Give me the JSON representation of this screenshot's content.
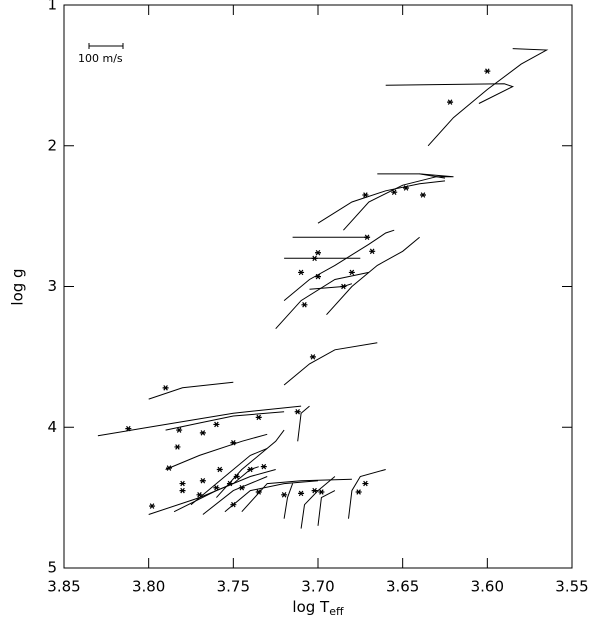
{
  "chart_data": {
    "type": "line",
    "xlabel": "log T",
    "xlabel_sub": "eff",
    "ylabel": "log g",
    "annotation": "100 m/s",
    "color": "#000000",
    "xlim": [
      3.85,
      3.55
    ],
    "xticks": [
      3.85,
      {
        "value": 3.8,
        "label": "3.80"
      },
      3.75,
      {
        "value": 3.7,
        "label": "3.70"
      },
      3.65,
      {
        "value": 3.6,
        "label": "3.60"
      },
      3.55
    ],
    "ylim": [
      1,
      5
    ],
    "yticks": [
      1,
      2,
      3,
      4,
      5
    ],
    "series": [
      {
        "x": [
          3.635,
          3.62,
          3.6,
          3.58,
          3.565,
          3.585
        ],
        "values": [
          2.0,
          1.8,
          1.6,
          1.42,
          1.32,
          1.31
        ]
      },
      {
        "x": [
          3.66,
          3.59,
          3.585,
          3.605
        ],
        "values": [
          1.57,
          1.56,
          1.58,
          1.7
        ]
      },
      {
        "x": [
          3.685,
          3.67,
          3.65,
          3.63,
          3.62,
          3.64
        ],
        "values": [
          2.6,
          2.4,
          2.28,
          2.22,
          2.22,
          2.2
        ]
      },
      {
        "x": [
          3.665,
          3.64,
          3.625
        ],
        "values": [
          2.2,
          2.2,
          2.23
        ]
      },
      {
        "x": [
          3.7,
          3.68,
          3.66,
          3.64,
          3.625
        ],
        "values": [
          2.55,
          2.4,
          2.32,
          2.27,
          2.25
        ]
      },
      {
        "x": [
          3.72,
          3.705,
          3.69,
          3.67,
          3.66,
          3.655
        ],
        "values": [
          3.1,
          2.95,
          2.85,
          2.7,
          2.62,
          2.6
        ]
      },
      {
        "x": [
          3.695,
          3.68,
          3.665,
          3.65,
          3.64
        ],
        "values": [
          3.2,
          3.0,
          2.85,
          2.75,
          2.65
        ]
      },
      {
        "x": [
          3.725,
          3.71,
          3.69,
          3.67
        ],
        "values": [
          3.3,
          3.1,
          2.95,
          2.9
        ]
      },
      {
        "x": [
          3.715,
          3.67
        ],
        "values": [
          2.65,
          2.65
        ]
      },
      {
        "x": [
          3.72,
          3.675
        ],
        "values": [
          2.8,
          2.8
        ]
      },
      {
        "x": [
          3.705,
          3.685,
          3.68
        ],
        "values": [
          3.02,
          3.0,
          2.98
        ]
      },
      {
        "x": [
          3.72,
          3.705,
          3.69,
          3.665
        ],
        "values": [
          3.7,
          3.55,
          3.45,
          3.4
        ]
      },
      {
        "x": [
          3.8,
          3.78,
          3.75
        ],
        "values": [
          3.8,
          3.72,
          3.68
        ]
      },
      {
        "x": [
          3.83,
          3.8,
          3.75,
          3.71
        ],
        "values": [
          4.06,
          4.0,
          3.9,
          3.85
        ]
      },
      {
        "x": [
          3.712,
          3.71,
          3.705
        ],
        "values": [
          4.1,
          3.9,
          3.85
        ]
      },
      {
        "x": [
          3.8,
          3.77,
          3.75,
          3.74,
          3.735
        ],
        "values": [
          4.62,
          4.5,
          4.4,
          4.3,
          4.28
        ]
      },
      {
        "x": [
          3.785,
          3.76,
          3.74,
          3.725
        ],
        "values": [
          4.6,
          4.45,
          4.35,
          4.3
        ]
      },
      {
        "x": [
          3.775,
          3.755,
          3.74,
          3.73
        ],
        "values": [
          4.55,
          4.35,
          4.2,
          4.15
        ]
      },
      {
        "x": [
          3.79,
          3.77,
          3.745,
          3.73
        ],
        "values": [
          4.3,
          4.2,
          4.1,
          4.05
        ]
      },
      {
        "x": [
          3.76,
          3.745,
          3.725,
          3.72
        ],
        "values": [
          4.5,
          4.3,
          4.1,
          4.02
        ]
      },
      {
        "x": [
          3.768,
          3.75,
          3.73
        ],
        "values": [
          4.62,
          4.45,
          4.35
        ]
      },
      {
        "x": [
          3.755,
          3.74,
          3.72,
          3.7
        ],
        "values": [
          4.6,
          4.45,
          4.4,
          4.38
        ]
      },
      {
        "x": [
          3.79,
          3.77,
          3.75,
          3.72
        ],
        "values": [
          4.02,
          3.97,
          3.92,
          3.89
        ]
      },
      {
        "x": [
          3.71,
          3.708,
          3.7,
          3.69
        ],
        "values": [
          4.72,
          4.55,
          4.45,
          4.35
        ]
      },
      {
        "x": [
          3.7,
          3.698,
          3.69
        ],
        "values": [
          4.7,
          4.5,
          4.45
        ]
      },
      {
        "x": [
          3.682,
          3.68,
          3.675,
          3.66
        ],
        "values": [
          4.65,
          4.45,
          4.35,
          4.3
        ]
      },
      {
        "x": [
          3.72,
          3.718,
          3.715
        ],
        "values": [
          4.65,
          4.5,
          4.4
        ]
      },
      {
        "x": [
          3.745,
          3.73,
          3.71,
          3.68
        ],
        "values": [
          4.6,
          4.4,
          4.38,
          4.37
        ]
      }
    ],
    "points": {
      "x": [
        3.6,
        3.622,
        3.672,
        3.655,
        3.648,
        3.638,
        3.7,
        3.702,
        3.71,
        3.7,
        3.68,
        3.668,
        3.671,
        3.685,
        3.708,
        3.703,
        3.79,
        3.812,
        3.712,
        3.782,
        3.768,
        3.76,
        3.735,
        3.783,
        3.75,
        3.788,
        3.78,
        3.768,
        3.758,
        3.748,
        3.74,
        3.732,
        3.798,
        3.78,
        3.77,
        3.76,
        3.752,
        3.745,
        3.735,
        3.72,
        3.71,
        3.702,
        3.698,
        3.676,
        3.672,
        3.75
      ],
      "values": [
        1.47,
        1.69,
        2.35,
        2.33,
        2.3,
        2.35,
        2.76,
        2.8,
        2.9,
        2.93,
        2.9,
        2.75,
        2.65,
        3.0,
        3.13,
        3.5,
        3.72,
        4.01,
        3.89,
        4.02,
        4.04,
        3.98,
        3.93,
        4.14,
        4.11,
        4.29,
        4.4,
        4.38,
        4.3,
        4.35,
        4.3,
        4.28,
        4.56,
        4.45,
        4.48,
        4.43,
        4.4,
        4.43,
        4.46,
        4.48,
        4.47,
        4.45,
        4.46,
        4.46,
        4.4,
        4.55
      ]
    }
  }
}
